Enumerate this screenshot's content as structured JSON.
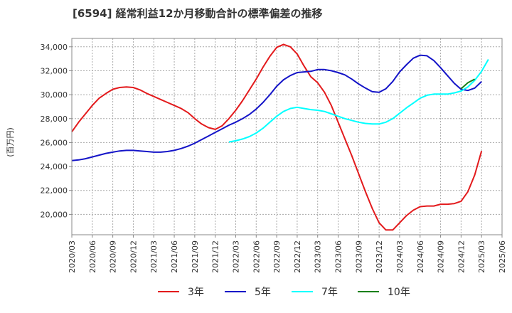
{
  "chart_data": {
    "type": "line",
    "title": "[6594]  経常利益12か月移動合計の標準偏差の推移",
    "ylabel": "(百万円)",
    "xlabel": "",
    "ylim": [
      18300,
      34700
    ],
    "yticks": [
      20000,
      22000,
      24000,
      26000,
      28000,
      30000,
      32000,
      34000
    ],
    "ytick_labels": [
      "20,000",
      "22,000",
      "24,000",
      "26,000",
      "28,000",
      "30,000",
      "32,000",
      "34,000"
    ],
    "xtick_labels": [
      "2020/03",
      "2020/06",
      "2020/09",
      "2020/12",
      "2021/03",
      "2021/06",
      "2021/09",
      "2021/12",
      "2022/03",
      "2022/06",
      "2022/09",
      "2022/12",
      "2023/03",
      "2023/06",
      "2023/09",
      "2023/12",
      "2024/03",
      "2024/06",
      "2024/09",
      "2024/12",
      "2025/03",
      "2025/06"
    ],
    "grid": true,
    "legend_position": "bottom",
    "series": [
      {
        "name": "3年",
        "color": "#e31a1c",
        "start": "2020/03",
        "values": [
          26900,
          27700,
          28400,
          29100,
          29700,
          30100,
          30450,
          30600,
          30650,
          30600,
          30400,
          30100,
          29850,
          29600,
          29350,
          29100,
          28850,
          28500,
          28000,
          27550,
          27250,
          27100,
          27400,
          28000,
          28700,
          29500,
          30400,
          31300,
          32300,
          33200,
          33950,
          34200,
          34000,
          33400,
          32400,
          31500,
          31000,
          30200,
          29100,
          27700,
          26300,
          24900,
          23400,
          21900,
          20500,
          19300,
          18700,
          18700,
          19300,
          19900,
          20350,
          20650,
          20700,
          20700,
          20850,
          20850,
          20900,
          21100,
          21900,
          23300,
          25300
        ]
      },
      {
        "name": "5年",
        "color": "#1414c8",
        "start": "2020/03",
        "values": [
          24500,
          24550,
          24650,
          24800,
          24950,
          25100,
          25200,
          25300,
          25350,
          25350,
          25300,
          25250,
          25200,
          25200,
          25250,
          25350,
          25500,
          25700,
          25950,
          26250,
          26550,
          26850,
          27150,
          27450,
          27700,
          28000,
          28350,
          28800,
          29350,
          30000,
          30700,
          31250,
          31600,
          31850,
          31900,
          31950,
          32100,
          32100,
          32000,
          31850,
          31650,
          31300,
          30900,
          30550,
          30250,
          30200,
          30500,
          31100,
          31900,
          32500,
          33050,
          33300,
          33250,
          32850,
          32250,
          31600,
          30950,
          30450,
          30350,
          30550,
          31100
        ]
      },
      {
        "name": "7年",
        "color": "#00ffff",
        "start": "2022/02",
        "values": [
          26050,
          26150,
          26300,
          26500,
          26800,
          27200,
          27700,
          28200,
          28600,
          28850,
          28950,
          28850,
          28750,
          28700,
          28600,
          28400,
          28200,
          28000,
          27850,
          27700,
          27600,
          27550,
          27550,
          27700,
          28000,
          28450,
          28900,
          29300,
          29700,
          29950,
          30050,
          30050,
          30050,
          30150,
          30300,
          30650,
          31200,
          31950,
          32950
        ]
      },
      {
        "name": "10年",
        "color": "#1a801a",
        "start": "2024/12",
        "values": [
          30500,
          31000,
          31300
        ]
      }
    ]
  }
}
